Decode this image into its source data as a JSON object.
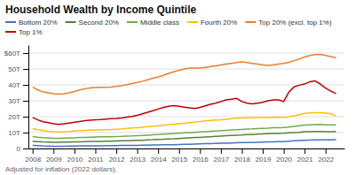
{
  "chart_data": {
    "type": "line",
    "title": "Household Wealth by Income Quintile",
    "annotations": [
      "Adjusted for inflation (2022 dollars)."
    ],
    "x": [
      2008,
      2008.25,
      2008.5,
      2008.75,
      2009,
      2009.25,
      2009.5,
      2009.75,
      2010,
      2010.25,
      2010.5,
      2010.75,
      2011,
      2011.25,
      2011.5,
      2011.75,
      2012,
      2012.25,
      2012.5,
      2012.75,
      2013,
      2013.25,
      2013.5,
      2013.75,
      2014,
      2014.25,
      2014.5,
      2014.75,
      2015,
      2015.25,
      2015.5,
      2015.75,
      2016,
      2016.25,
      2016.5,
      2016.75,
      2017,
      2017.25,
      2017.5,
      2017.75,
      2018,
      2018.25,
      2018.5,
      2018.75,
      2019,
      2019.25,
      2019.5,
      2019.75,
      2020,
      2020.25,
      2020.5,
      2020.75,
      2021,
      2021.25,
      2021.5,
      2021.75,
      2022,
      2022.25,
      2022.5
    ],
    "series": [
      {
        "name": "Bottom 20%",
        "color": "#4472c4",
        "values": [
          2.0,
          1.8,
          1.6,
          1.5,
          1.4,
          1.4,
          1.4,
          1.5,
          1.5,
          1.6,
          1.6,
          1.7,
          1.7,
          1.7,
          1.8,
          1.8,
          1.8,
          1.9,
          1.9,
          2.0,
          2.0,
          2.1,
          2.1,
          2.2,
          2.2,
          2.3,
          2.4,
          2.4,
          2.5,
          2.6,
          2.7,
          2.8,
          2.9,
          3.0,
          3.1,
          3.2,
          3.3,
          3.4,
          3.5,
          3.6,
          3.7,
          3.8,
          3.8,
          3.9,
          4.0,
          4.1,
          4.2,
          4.3,
          4.3,
          4.6,
          4.8,
          5.0,
          5.2,
          5.3,
          5.4,
          5.4,
          5.4,
          5.4,
          5.5
        ]
      },
      {
        "name": "Second 20%",
        "color": "#548235",
        "values": [
          4.5,
          4.3,
          4.1,
          4.0,
          3.9,
          3.9,
          4.0,
          4.0,
          4.1,
          4.2,
          4.3,
          4.4,
          4.5,
          4.5,
          4.6,
          4.6,
          4.7,
          4.8,
          4.9,
          5.0,
          5.1,
          5.2,
          5.4,
          5.5,
          5.7,
          5.8,
          6.0,
          6.1,
          6.3,
          6.5,
          6.7,
          6.9,
          7.0,
          7.2,
          7.4,
          7.6,
          7.8,
          8.0,
          8.2,
          8.4,
          8.5,
          8.7,
          8.8,
          9.0,
          9.1,
          9.3,
          9.4,
          9.5,
          9.6,
          9.8,
          10.0,
          10.2,
          10.5,
          10.6,
          10.7,
          10.7,
          10.6,
          10.6,
          10.7
        ]
      },
      {
        "name": "Middle class",
        "color": "#70ad47",
        "values": [
          7.5,
          7.1,
          6.8,
          6.6,
          6.4,
          6.4,
          6.5,
          6.6,
          6.7,
          6.9,
          7.0,
          7.1,
          7.2,
          7.3,
          7.3,
          7.4,
          7.5,
          7.6,
          7.8,
          7.9,
          8.1,
          8.2,
          8.4,
          8.6,
          8.8,
          9.0,
          9.2,
          9.4,
          9.6,
          9.8,
          10.0,
          10.2,
          10.4,
          10.6,
          10.8,
          11.0,
          11.2,
          11.4,
          11.6,
          11.8,
          12.0,
          12.2,
          12.3,
          12.5,
          12.7,
          12.8,
          13.0,
          13.1,
          13.2,
          13.5,
          13.9,
          14.3,
          14.7,
          14.9,
          15.0,
          15.1,
          14.9,
          14.8,
          14.8
        ]
      },
      {
        "name": "Fourth 20%",
        "color": "#ffc000",
        "values": [
          12.5,
          11.8,
          11.2,
          10.8,
          10.5,
          10.4,
          10.5,
          10.7,
          11.0,
          11.2,
          11.4,
          11.5,
          11.6,
          11.7,
          11.8,
          11.9,
          12.1,
          12.3,
          12.6,
          12.9,
          13.1,
          13.4,
          13.7,
          14.0,
          14.3,
          14.6,
          15.0,
          15.3,
          15.6,
          15.9,
          16.2,
          16.6,
          17.0,
          17.3,
          17.6,
          17.9,
          18.1,
          18.4,
          18.7,
          19.0,
          19.2,
          19.3,
          19.4,
          19.5,
          19.5,
          19.5,
          19.6,
          19.7,
          19.6,
          19.9,
          20.6,
          21.3,
          22.1,
          22.3,
          22.5,
          22.5,
          22.2,
          21.8,
          20.5
        ]
      },
      {
        "name": "Top 20% (excl. top 1%)",
        "color": "#ed7d31",
        "values": [
          38.5,
          36.8,
          35.5,
          35.0,
          34.5,
          34.2,
          34.5,
          35.0,
          35.8,
          36.8,
          37.5,
          38.0,
          38.3,
          38.5,
          38.5,
          38.6,
          39.0,
          39.5,
          40.2,
          40.8,
          41.5,
          42.3,
          43.2,
          44.2,
          45.0,
          46.0,
          47.2,
          48.2,
          49.2,
          50.0,
          50.5,
          50.5,
          50.5,
          51.0,
          51.5,
          52.0,
          52.5,
          53.0,
          53.5,
          54.0,
          54.5,
          54.0,
          53.5,
          53.0,
          52.5,
          52.2,
          52.5,
          53.0,
          53.5,
          54.2,
          55.2,
          56.2,
          57.5,
          58.5,
          59.0,
          59.2,
          58.5,
          57.8,
          57.0
        ]
      },
      {
        "name": "Top 1%",
        "color": "#c00000",
        "values": [
          19.5,
          18.0,
          16.8,
          16.2,
          15.5,
          15.2,
          15.5,
          16.0,
          16.5,
          17.0,
          17.5,
          17.8,
          18.0,
          18.2,
          18.5,
          18.7,
          18.9,
          19.2,
          19.7,
          20.2,
          20.8,
          21.8,
          22.8,
          23.8,
          24.8,
          25.8,
          26.5,
          27.0,
          26.5,
          26.0,
          25.5,
          25.2,
          25.8,
          26.8,
          27.8,
          28.5,
          29.5,
          30.5,
          31.0,
          31.5,
          29.5,
          28.5,
          28.0,
          28.5,
          29.0,
          30.0,
          30.5,
          30.5,
          29.5,
          35.5,
          38.8,
          39.8,
          40.5,
          42.0,
          42.5,
          40.5,
          38.0,
          36.0,
          34.5
        ]
      }
    ],
    "xlim": [
      2007.8,
      2022.9
    ],
    "xticks": [
      2008,
      2009,
      2010,
      2011,
      2012,
      2013,
      2014,
      2015,
      2016,
      2017,
      2018,
      2019,
      2020,
      2021,
      2022
    ],
    "ylim": [
      0,
      65
    ],
    "yticks": [
      0,
      {
        "value": 10,
        "label": "10T"
      },
      {
        "value": 20,
        "label": "20T"
      },
      {
        "value": 30,
        "label": "30T"
      },
      {
        "value": 40,
        "label": "40T"
      },
      {
        "value": 50,
        "label": "50T"
      },
      {
        "value": 60,
        "label": "$60T"
      }
    ],
    "grid": true,
    "legend": "top"
  }
}
